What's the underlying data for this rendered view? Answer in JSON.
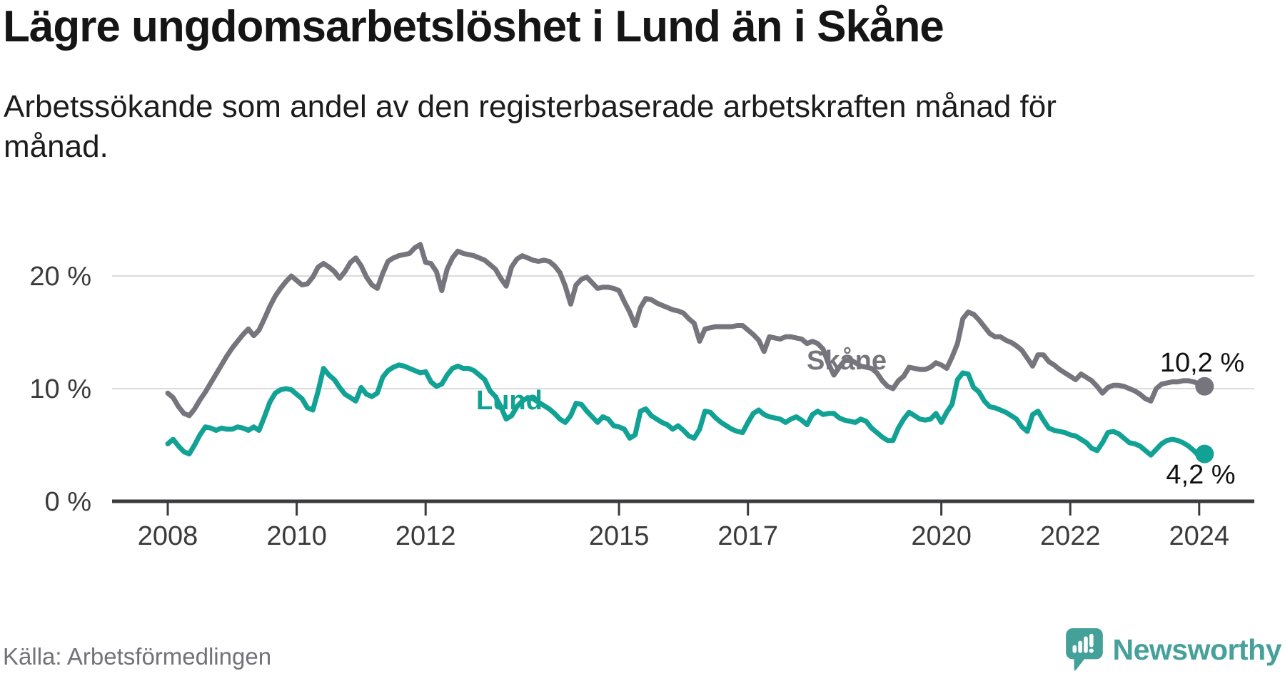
{
  "header": {
    "title": "Lägre ungdomsarbetslöshet i Lund än i Skåne",
    "subtitle": "Arbetssökande som andel av den registerbaserade arbetskraften månad för månad."
  },
  "chart_data": {
    "type": "line",
    "title": "Lägre ungdomsarbetslöshet i Lund än i Skåne",
    "xlabel": "",
    "ylabel": "",
    "frequency": "monthly",
    "start_year": 2008,
    "start_month": 1,
    "x_ticks": [
      2008,
      2010,
      2012,
      2015,
      2017,
      2020,
      2022,
      2024
    ],
    "y_ticks": [
      {
        "v": 0,
        "label": "0 %"
      },
      {
        "v": 10,
        "label": "10 %"
      },
      {
        "v": 20,
        "label": "20 %"
      }
    ],
    "ylim": [
      0,
      24
    ],
    "grid": "horizontal",
    "legend_position": "inline-labels",
    "series": [
      {
        "name": "Skåne",
        "color": "#76757D",
        "end_label": "10,2 %",
        "end_value": 10.2,
        "values": [
          9.6,
          9.2,
          8.4,
          7.8,
          7.6,
          8.2,
          9.0,
          9.7,
          10.5,
          11.3,
          12.1,
          12.9,
          13.6,
          14.2,
          14.8,
          15.3,
          14.7,
          15.2,
          16.2,
          17.3,
          18.2,
          18.9,
          19.5,
          20.0,
          19.6,
          19.2,
          19.3,
          19.9,
          20.8,
          21.1,
          20.8,
          20.4,
          19.8,
          20.4,
          21.2,
          21.6,
          20.9,
          19.9,
          19.2,
          18.9,
          20.2,
          21.3,
          21.6,
          21.8,
          21.9,
          22.0,
          22.5,
          22.8,
          21.2,
          21.1,
          20.4,
          18.7,
          20.6,
          21.6,
          22.2,
          22.0,
          21.9,
          21.8,
          21.6,
          21.4,
          21.0,
          20.6,
          19.8,
          19.1,
          20.8,
          21.5,
          21.8,
          21.6,
          21.4,
          21.3,
          21.4,
          21.3,
          20.9,
          20.3,
          19.1,
          17.5,
          19.2,
          19.7,
          19.9,
          19.4,
          18.9,
          19.0,
          19.0,
          18.9,
          18.7,
          17.7,
          16.8,
          15.6,
          17.2,
          18.0,
          17.9,
          17.6,
          17.4,
          17.2,
          17.0,
          16.9,
          16.7,
          16.2,
          15.8,
          14.2,
          15.3,
          15.4,
          15.5,
          15.5,
          15.5,
          15.5,
          15.6,
          15.6,
          15.2,
          14.8,
          14.3,
          13.3,
          14.6,
          14.5,
          14.4,
          14.6,
          14.6,
          14.5,
          14.4,
          14.0,
          14.2,
          14.0,
          13.5,
          12.2,
          11.2,
          11.9,
          12.5,
          12.6,
          12.3,
          12.0,
          11.9,
          11.8,
          11.4,
          10.7,
          10.2,
          10.0,
          10.7,
          11.1,
          11.9,
          11.8,
          11.7,
          11.7,
          11.9,
          12.3,
          12.1,
          11.8,
          12.8,
          14.0,
          16.2,
          16.8,
          16.6,
          16.1,
          15.5,
          14.9,
          14.6,
          14.6,
          14.3,
          14.1,
          13.8,
          13.4,
          12.7,
          12.0,
          13.0,
          13.0,
          12.4,
          12.1,
          11.7,
          11.4,
          11.1,
          10.8,
          11.3,
          11.0,
          10.7,
          10.2,
          9.6,
          10.1,
          10.3,
          10.3,
          10.2,
          10.0,
          9.8,
          9.5,
          9.1,
          8.9,
          10.0,
          10.4,
          10.5,
          10.6,
          10.6,
          10.7,
          10.7,
          10.6,
          10.4,
          10.2
        ]
      },
      {
        "name": "Lund",
        "color": "#12A295",
        "end_label": "4,2 %",
        "end_value": 4.2,
        "values": [
          5.1,
          5.5,
          4.9,
          4.4,
          4.2,
          5.0,
          5.9,
          6.6,
          6.5,
          6.3,
          6.5,
          6.4,
          6.4,
          6.6,
          6.5,
          6.3,
          6.6,
          6.3,
          7.5,
          8.8,
          9.6,
          9.9,
          10.0,
          9.9,
          9.5,
          9.1,
          8.3,
          8.1,
          9.8,
          11.8,
          11.2,
          10.8,
          10.1,
          9.5,
          9.2,
          8.9,
          10.1,
          9.5,
          9.3,
          9.6,
          11.0,
          11.6,
          11.9,
          12.1,
          12.0,
          11.8,
          11.6,
          11.4,
          11.5,
          10.6,
          10.2,
          10.4,
          11.2,
          11.8,
          12.0,
          11.8,
          11.8,
          11.6,
          11.2,
          10.8,
          9.8,
          9.3,
          8.4,
          7.3,
          7.6,
          8.4,
          8.9,
          9.2,
          9.1,
          8.8,
          8.5,
          8.2,
          7.8,
          7.3,
          7.0,
          7.6,
          8.7,
          8.6,
          8.0,
          7.5,
          7.0,
          7.5,
          7.3,
          6.7,
          6.6,
          6.4,
          5.6,
          5.9,
          8.0,
          8.2,
          7.6,
          7.3,
          7.0,
          6.8,
          6.4,
          6.7,
          6.3,
          5.8,
          5.6,
          6.4,
          8.0,
          7.9,
          7.4,
          7.0,
          6.7,
          6.4,
          6.2,
          6.1,
          7.0,
          7.8,
          8.1,
          7.7,
          7.5,
          7.4,
          7.3,
          7.0,
          7.3,
          7.5,
          7.2,
          6.8,
          7.7,
          8.0,
          7.7,
          7.8,
          7.8,
          7.4,
          7.2,
          7.1,
          7.0,
          7.3,
          7.1,
          6.5,
          6.1,
          5.7,
          5.4,
          5.4,
          6.5,
          7.3,
          7.9,
          7.6,
          7.3,
          7.2,
          7.3,
          7.8,
          7.0,
          7.9,
          8.6,
          10.8,
          11.4,
          11.3,
          10.1,
          9.7,
          8.9,
          8.4,
          8.3,
          8.1,
          7.9,
          7.6,
          7.3,
          6.6,
          6.2,
          7.7,
          8.0,
          7.2,
          6.5,
          6.3,
          6.2,
          6.1,
          5.9,
          5.8,
          5.5,
          5.2,
          4.7,
          4.5,
          5.2,
          6.1,
          6.2,
          6.0,
          5.6,
          5.2,
          5.1,
          4.9,
          4.5,
          4.1,
          4.6,
          5.1,
          5.4,
          5.5,
          5.4,
          5.2,
          4.9,
          4.5,
          4.0,
          4.2
        ]
      }
    ]
  },
  "footer": {
    "source": "Källa: Arbetsförmedlingen",
    "brand": "Newsworthy"
  },
  "colors": {
    "lund_teal": "#12A295",
    "skane_gray": "#76757D",
    "axis": "#3B3A3C",
    "grid": "#DBDBDB",
    "title_text": "#151515",
    "body_text": "#1C1C1C",
    "muted_text": "#73727A",
    "brand_teal": "#47A09A",
    "background": "#FFFFFF"
  }
}
